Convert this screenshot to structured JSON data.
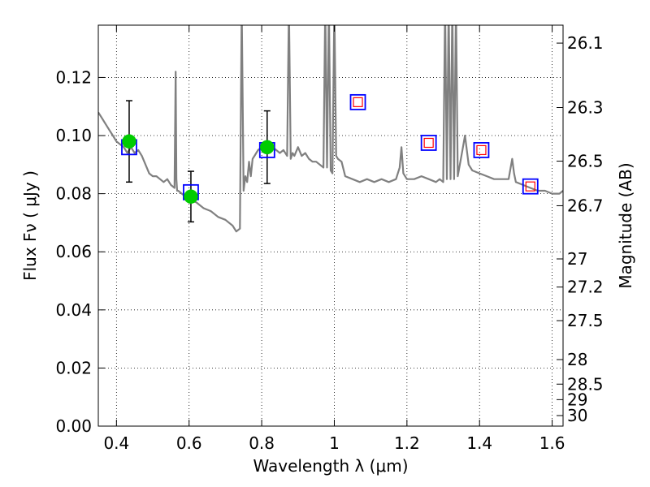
{
  "chart_data": {
    "type": "line",
    "xlabel": "Wavelength  λ (μm)",
    "ylabel": "Flux  Fν  ( μJy )",
    "y2label": "Magnitude (AB)",
    "xlim": [
      0.35,
      1.63
    ],
    "ylim": [
      0.0,
      0.138
    ],
    "grid": true,
    "x_ticks": [
      0.4,
      0.6,
      0.8,
      1.0,
      1.2,
      1.4,
      1.6
    ],
    "x_tick_labels": [
      "0.4",
      "0.6",
      "0.8",
      "1",
      "1.2",
      "1.4",
      "1.6"
    ],
    "y_ticks": [
      0.0,
      0.02,
      0.04,
      0.06,
      0.08,
      0.1,
      0.12
    ],
    "y_tick_labels": [
      "0.00",
      "0.02",
      "0.04",
      "0.06",
      "0.08",
      "0.10",
      "0.12"
    ],
    "mag_ticks": [
      26.1,
      26.3,
      26.5,
      26.7,
      27,
      27.2,
      27.5,
      28,
      28.5,
      29,
      30
    ],
    "mag_tick_labels": [
      "26.1",
      "26.3",
      "26.5",
      "26.7",
      "27",
      "27.2",
      "27.5",
      "28",
      "28.5",
      "29",
      "30"
    ],
    "spectrum": {
      "x": [
        0.35,
        0.36,
        0.37,
        0.38,
        0.39,
        0.4,
        0.41,
        0.42,
        0.43,
        0.44,
        0.45,
        0.46,
        0.47,
        0.48,
        0.49,
        0.5,
        0.51,
        0.52,
        0.53,
        0.54,
        0.55,
        0.56,
        0.563,
        0.565,
        0.567,
        0.57,
        0.58,
        0.59,
        0.6,
        0.62,
        0.64,
        0.66,
        0.68,
        0.7,
        0.72,
        0.73,
        0.74,
        0.745,
        0.75,
        0.755,
        0.76,
        0.765,
        0.77,
        0.775,
        0.78,
        0.785,
        0.79,
        0.8,
        0.81,
        0.82,
        0.83,
        0.84,
        0.85,
        0.86,
        0.87,
        0.875,
        0.88,
        0.885,
        0.89,
        0.9,
        0.91,
        0.92,
        0.93,
        0.94,
        0.95,
        0.96,
        0.97,
        0.975,
        0.98,
        0.985,
        0.99,
        0.995,
        1.0,
        1.005,
        1.01,
        1.02,
        1.03,
        1.05,
        1.07,
        1.09,
        1.11,
        1.13,
        1.15,
        1.17,
        1.18,
        1.185,
        1.19,
        1.2,
        1.22,
        1.24,
        1.26,
        1.28,
        1.29,
        1.3,
        1.305,
        1.31,
        1.315,
        1.32,
        1.325,
        1.33,
        1.335,
        1.34,
        1.35,
        1.36,
        1.37,
        1.38,
        1.4,
        1.42,
        1.44,
        1.46,
        1.48,
        1.49,
        1.495,
        1.5,
        1.52,
        1.54,
        1.56,
        1.58,
        1.6,
        1.62,
        1.63
      ],
      "y": [
        0.108,
        0.106,
        0.104,
        0.102,
        0.1,
        0.098,
        0.097,
        0.096,
        0.094,
        0.096,
        0.094,
        0.095,
        0.093,
        0.09,
        0.087,
        0.086,
        0.086,
        0.085,
        0.084,
        0.085,
        0.083,
        0.082,
        0.122,
        0.085,
        0.081,
        0.081,
        0.08,
        0.079,
        0.078,
        0.077,
        0.075,
        0.074,
        0.072,
        0.071,
        0.069,
        0.067,
        0.068,
        0.145,
        0.081,
        0.086,
        0.084,
        0.091,
        0.086,
        0.092,
        0.093,
        0.094,
        0.095,
        0.096,
        0.095,
        0.095,
        0.096,
        0.095,
        0.094,
        0.095,
        0.093,
        0.145,
        0.092,
        0.094,
        0.093,
        0.096,
        0.093,
        0.094,
        0.092,
        0.091,
        0.091,
        0.09,
        0.089,
        0.145,
        0.089,
        0.145,
        0.088,
        0.087,
        0.145,
        0.093,
        0.092,
        0.091,
        0.086,
        0.085,
        0.084,
        0.085,
        0.084,
        0.085,
        0.084,
        0.085,
        0.089,
        0.096,
        0.087,
        0.085,
        0.085,
        0.086,
        0.085,
        0.084,
        0.085,
        0.084,
        0.145,
        0.085,
        0.145,
        0.085,
        0.145,
        0.085,
        0.145,
        0.086,
        0.093,
        0.1,
        0.09,
        0.088,
        0.087,
        0.086,
        0.085,
        0.085,
        0.085,
        0.092,
        0.087,
        0.084,
        0.083,
        0.082,
        0.081,
        0.081,
        0.08,
        0.08,
        0.081
      ]
    },
    "measured_points": {
      "x": [
        0.435,
        0.605,
        0.815
      ],
      "y": [
        0.098,
        0.079,
        0.096
      ],
      "yerr": [
        0.014,
        0.0087,
        0.0125
      ]
    },
    "synthetic_points_blue": {
      "x": [
        0.435,
        0.605,
        0.815,
        1.065,
        1.26,
        1.405,
        1.54
      ],
      "y": [
        0.096,
        0.0805,
        0.095,
        0.1115,
        0.0975,
        0.095,
        0.0825
      ]
    },
    "synthetic_points_red": {
      "x": [
        1.065,
        1.26,
        1.405,
        1.54
      ],
      "y": [
        0.1115,
        0.0975,
        0.095,
        0.0825
      ]
    },
    "colors": {
      "spectrum": "#808080",
      "measured": "#00cc00",
      "synthetic_outer": "#0000ff",
      "synthetic_inner": "#ff0000",
      "grid": "#000000"
    }
  }
}
